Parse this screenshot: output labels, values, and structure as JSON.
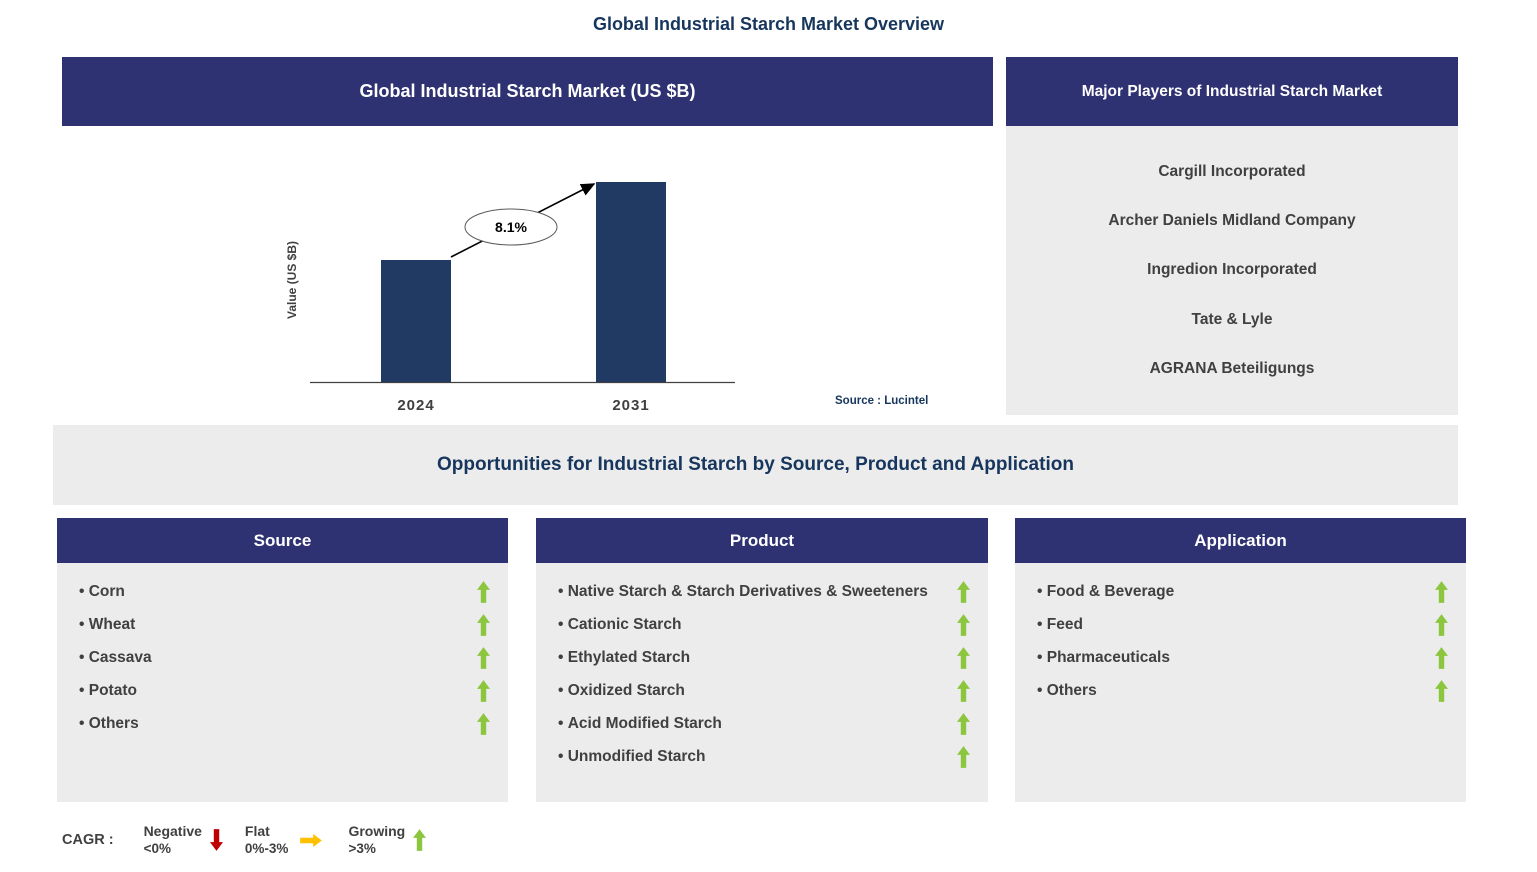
{
  "page_title": "Global Industrial Starch Market Overview",
  "chart_data": {
    "type": "bar",
    "title": "Global Industrial Starch Market (US $B)",
    "ylabel": "Value (US $B)",
    "xlabel": "",
    "categories": [
      "2024",
      "2031"
    ],
    "values": [
      0.61,
      1.0
    ],
    "value_axis_ticks_shown": false,
    "cagr_annotation": "8.1%",
    "source_note": "Source : Lucintel",
    "bar_color": "#203A64",
    "grid": false,
    "legend_position": "none"
  },
  "major_players": {
    "header": "Major Players of Industrial Starch Market",
    "items": [
      "Cargill Incorporated",
      "Archer Daniels Midland Company",
      "Ingredion Incorporated",
      "Tate & Lyle",
      "AGRANA Beteiligungs"
    ]
  },
  "opportunities_title": "Opportunities for Industrial Starch by Source, Product and Application",
  "columns": {
    "source": {
      "header": "Source",
      "items": [
        "Corn",
        "Wheat",
        "Cassava",
        "Potato",
        "Others"
      ],
      "trend": "up"
    },
    "product": {
      "header": "Product",
      "items": [
        "Native Starch & Starch Derivatives & Sweeteners",
        "Cationic Starch",
        "Ethylated Starch",
        "Oxidized Starch",
        "Acid Modified Starch",
        "Unmodified Starch"
      ],
      "trend": "up"
    },
    "application": {
      "header": "Application",
      "items": [
        "Food & Beverage",
        "Feed",
        "Pharmaceuticals",
        "Others"
      ],
      "trend": "up"
    }
  },
  "legend": {
    "label": "CAGR :",
    "items": [
      {
        "name": "Negative",
        "range": "<0%",
        "direction": "down",
        "color": "#C00000"
      },
      {
        "name": "Flat",
        "range": "0%-3%",
        "direction": "right",
        "color": "#FFC000"
      },
      {
        "name": "Growing",
        "range": ">3%",
        "direction": "up",
        "color": "#8CC63F"
      }
    ]
  },
  "colors": {
    "header_bg": "#2E3272",
    "panel_bg": "#ECECEC",
    "title_text": "#17365D",
    "body_text": "#404040",
    "bar": "#203A64",
    "growing_arrow": "#8CC63F"
  }
}
